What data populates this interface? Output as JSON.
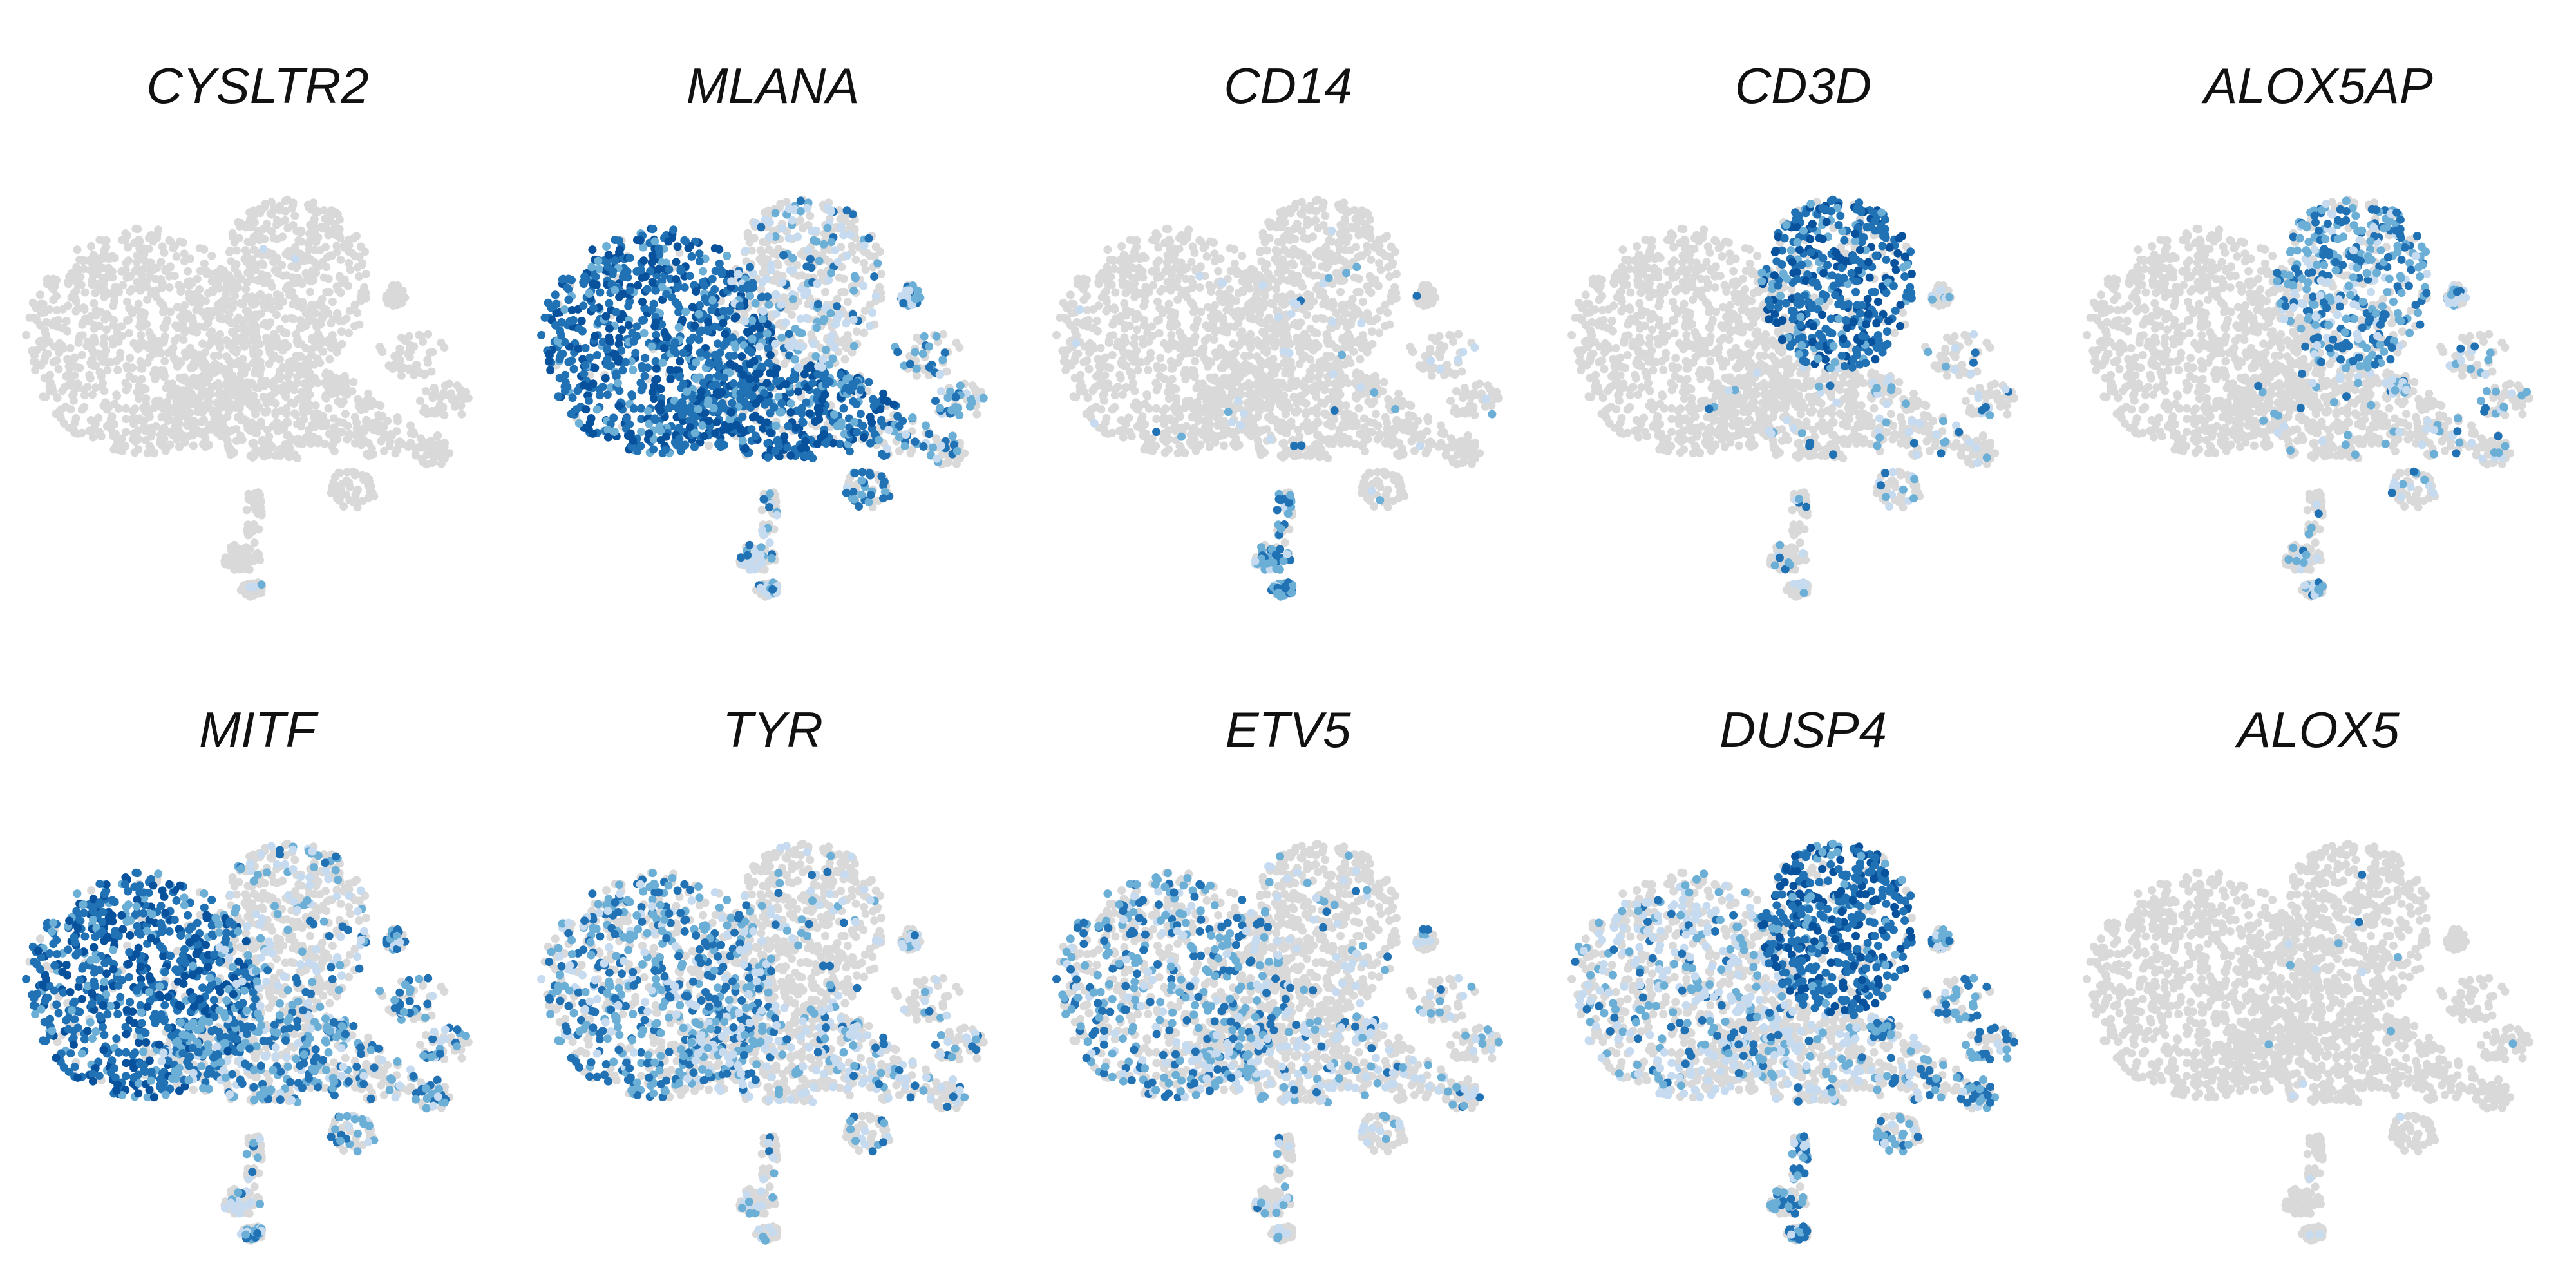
{
  "chart_data": {
    "type": "scatter",
    "description_of_color": "each point is a cell; gray = not expressed, blue shades = expression level (light to dark = low to high)",
    "colors": {
      "background_cell": "#d9d9d9",
      "low": "#c6dbef",
      "mid": "#6baed6",
      "high": "#2171b5",
      "max": "#08519c"
    },
    "grid": false,
    "axes": false,
    "legend": "none",
    "panels": [
      {
        "gene": "CYSLTR2",
        "expression": {
          "melanoma_left": 0.0,
          "tcell_top": 0.01,
          "center_lower": 0.0,
          "right_islands": 0.0,
          "bottom_tail": 0.05
        }
      },
      {
        "gene": "MLANA",
        "expression": {
          "melanoma_left": 0.95,
          "tcell_top": 0.35,
          "center_lower": 0.85,
          "right_islands": 0.5,
          "bottom_tail": 0.4
        }
      },
      {
        "gene": "CD14",
        "expression": {
          "melanoma_left": 0.01,
          "tcell_top": 0.03,
          "center_lower": 0.04,
          "right_islands": 0.05,
          "bottom_tail": 0.7
        }
      },
      {
        "gene": "CD3D",
        "expression": {
          "melanoma_left": 0.0,
          "tcell_top": 0.85,
          "center_lower": 0.08,
          "right_islands": 0.2,
          "bottom_tail": 0.1
        }
      },
      {
        "gene": "ALOX5AP",
        "expression": {
          "melanoma_left": 0.0,
          "tcell_top": 0.7,
          "center_lower": 0.08,
          "right_islands": 0.3,
          "bottom_tail": 0.2
        }
      },
      {
        "gene": "MITF",
        "expression": {
          "melanoma_left": 0.9,
          "tcell_top": 0.3,
          "center_lower": 0.6,
          "right_islands": 0.45,
          "bottom_tail": 0.3
        }
      },
      {
        "gene": "TYR",
        "expression": {
          "melanoma_left": 0.65,
          "tcell_top": 0.15,
          "center_lower": 0.4,
          "right_islands": 0.3,
          "bottom_tail": 0.2
        }
      },
      {
        "gene": "ETV5",
        "expression": {
          "melanoma_left": 0.45,
          "tcell_top": 0.1,
          "center_lower": 0.3,
          "right_islands": 0.2,
          "bottom_tail": 0.15
        }
      },
      {
        "gene": "DUSP4",
        "expression": {
          "melanoma_left": 0.4,
          "tcell_top": 0.85,
          "center_lower": 0.3,
          "right_islands": 0.55,
          "bottom_tail": 0.5
        }
      },
      {
        "gene": "ALOX5",
        "expression": {
          "melanoma_left": 0.0,
          "tcell_top": 0.02,
          "center_lower": 0.01,
          "right_islands": 0.02,
          "bottom_tail": 0.05
        }
      }
    ]
  }
}
